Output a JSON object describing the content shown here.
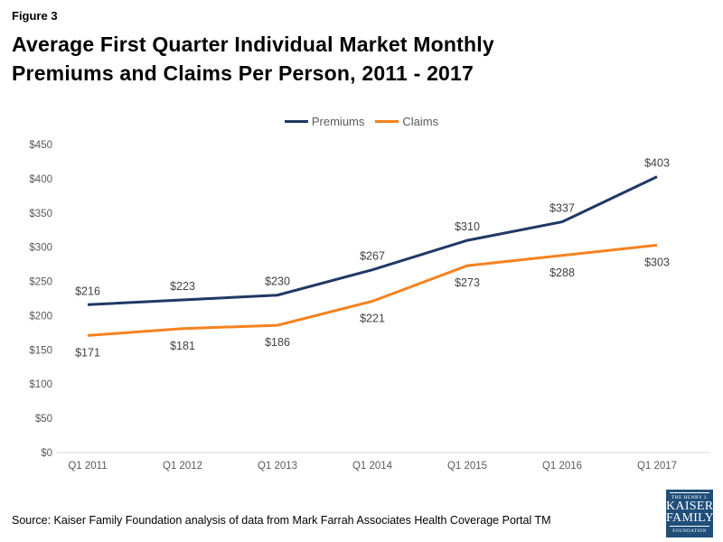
{
  "figure_label": "Figure 3",
  "title_lines": [
    "Average First Quarter Individual Market Monthly",
    "Premiums and Claims Per Person, 2011 - 2017"
  ],
  "source": "Source: Kaiser Family Foundation analysis of data from Mark Farrah Associates Health Coverage Portal TM",
  "logo": {
    "top_text": "THE HENRY J.",
    "name_line1": "KAISER",
    "name_line2": "FAMILY",
    "bottom_text": "FOUNDATION",
    "bg_color": "#1F4E79"
  },
  "chart_data": {
    "type": "line",
    "categories": [
      "Q1 2011",
      "Q1 2012",
      "Q1 2013",
      "Q1 2014",
      "Q1 2015",
      "Q1 2016",
      "Q1 2017"
    ],
    "series": [
      {
        "name": "Premiums",
        "color": "#203864",
        "values": [
          216,
          223,
          230,
          267,
          310,
          337,
          403
        ],
        "label_position": "above"
      },
      {
        "name": "Claims",
        "color": "#F5821F",
        "values": [
          171,
          181,
          186,
          221,
          273,
          288,
          303
        ],
        "label_position": "below"
      }
    ],
    "title": "Average First Quarter Individual Market Monthly Premiums and Claims Per Person, 2011 - 2017",
    "xlabel": "",
    "ylabel": "",
    "ylim": [
      0,
      450
    ],
    "ytick_step": 50,
    "ytick_prefix": "$",
    "data_label_prefix": "$",
    "grid": false,
    "legend_position": "top-center",
    "axis_color": "#D9D9D9",
    "tick_color": "#595959",
    "data_label_color": "#404040"
  }
}
